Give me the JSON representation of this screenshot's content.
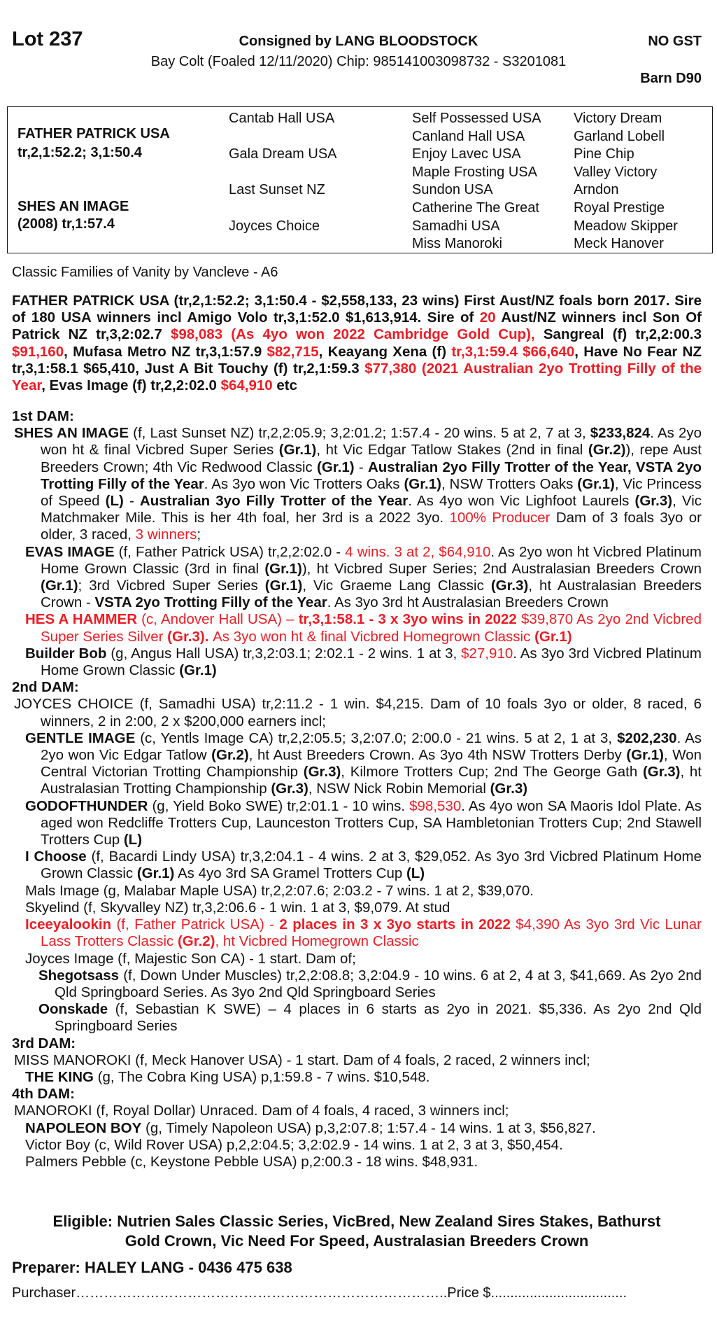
{
  "header": {
    "lot": "Lot 237",
    "consigned": "Consigned by LANG BLOODSTOCK",
    "gst": "NO GST",
    "horse": "Bay Colt (Foaled 12/11/2020) Chip: 985141003098732 - S3201081",
    "barn": "Barn D90"
  },
  "pedigree": {
    "sire_name": "FATHER PATRICK USA",
    "sire_record": "tr,2,1:52.2; 3,1:50.4",
    "dam_name": "SHES AN IMAGE",
    "dam_record": "(2008) tr,1:57.4",
    "gen2": [
      "Cantab Hall USA",
      "Gala Dream USA",
      "Last Sunset NZ",
      "Joyces Choice"
    ],
    "gen3": [
      "Self Possessed USA",
      "Canland Hall USA",
      "Enjoy Lavec USA",
      "Maple Frosting USA",
      "Sundon USA",
      "Catherine The Great",
      "Samadhi USA",
      "Miss Manoroki"
    ],
    "gen4": [
      "Victory Dream",
      "Garland Lobell",
      "Pine Chip",
      "Valley Victory",
      "Arndon",
      "Royal Prestige",
      "Meadow Skipper",
      "Meck Hanover"
    ]
  },
  "family": "Classic Families of Vanity by Vancleve - A6",
  "sire_summary": {
    "segments": [
      {
        "t": "FATHER PATRICK USA (tr,2,1:52.2; 3,1:50.4 - $2,558,133, 23 wins) First Aust/NZ foals born 2017. Sire of 180 USA winners incl Amigo Volo tr,3,1:52.0 $1,613,914. Sire of ",
        "s": ""
      },
      {
        "t": "20",
        "s": "r"
      },
      {
        "t": " Aust/NZ winners incl Son Of Patrick NZ tr,3,2:02.7 ",
        "s": ""
      },
      {
        "t": "$98,083 (As 4yo won 2022 Cambridge Gold Cup),",
        "s": "r"
      },
      {
        "t": " Sangreal (f) tr,2,2:00.3 ",
        "s": ""
      },
      {
        "t": "$91,160",
        "s": "r"
      },
      {
        "t": ", Mufasa Metro NZ tr,3,1:57.9 ",
        "s": ""
      },
      {
        "t": "$82,715",
        "s": "r"
      },
      {
        "t": ", Keayang Xena (f) ",
        "s": ""
      },
      {
        "t": "tr,3,1:59.4  $66,640",
        "s": "r"
      },
      {
        "t": ", Have No Fear NZ tr,3,1:58.1 $65,410, Just A Bit Touchy (f) tr,2,1:59.3 ",
        "s": ""
      },
      {
        "t": "$77,380 (2021 Australian 2yo Trotting Filly of the Year",
        "s": "r"
      },
      {
        "t": ", Evas Image (f) tr,2,2:02.0 ",
        "s": ""
      },
      {
        "t": "$64,910",
        "s": "r"
      },
      {
        "t": " etc",
        "s": ""
      }
    ]
  },
  "dams": {
    "entries": [
      {
        "level": "h",
        "segments": [
          {
            "t": "1st DAM:",
            "s": "b"
          }
        ]
      },
      {
        "level": "d",
        "segments": [
          {
            "t": "SHES AN IMAGE",
            "s": "b"
          },
          {
            "t": " (f, Last Sunset NZ) tr,2,2:05.9; 3,2:01.2; 1:57.4 - 20 wins. 5 at 2, 7 at 3, ",
            "s": ""
          },
          {
            "t": "$233,824",
            "s": "b"
          },
          {
            "t": ". As 2yo won ht & final Vicbred Super Series ",
            "s": ""
          },
          {
            "t": "(Gr.1)",
            "s": "b"
          },
          {
            "t": ", ht Vic Edgar Tatlow Stakes (2nd in final ",
            "s": ""
          },
          {
            "t": "(Gr.2)",
            "s": "b"
          },
          {
            "t": "), repe Aust Breeders Crown; 4th Vic Redwood Classic ",
            "s": ""
          },
          {
            "t": "(Gr.1)",
            "s": "b"
          },
          {
            "t": " - ",
            "s": ""
          },
          {
            "t": "Australian 2yo Filly Trotter of the Year, VSTA 2yo Trotting Filly of the Year",
            "s": "b"
          },
          {
            "t": ". As 3yo won Vic Trotters Oaks ",
            "s": ""
          },
          {
            "t": "(Gr.1)",
            "s": "b"
          },
          {
            "t": ", NSW Trotters Oaks ",
            "s": ""
          },
          {
            "t": "(Gr.1)",
            "s": "b"
          },
          {
            "t": ", Vic Princess of Speed ",
            "s": ""
          },
          {
            "t": "(L)",
            "s": "b"
          },
          {
            "t": " - ",
            "s": ""
          },
          {
            "t": "Australian 3yo Filly Trotter of the Year",
            "s": "b"
          },
          {
            "t": ". As 4yo won Vic Lighfoot Laurels ",
            "s": ""
          },
          {
            "t": "(Gr.3)",
            "s": "b"
          },
          {
            "t": ", Vic Matchmaker Mile. This is her 4th foal, her 3rd is a 2022 3yo. ",
            "s": ""
          },
          {
            "t": "100% Producer",
            "s": "r"
          },
          {
            "t": " Dam of 3 foals 3yo or older, 3 raced, ",
            "s": ""
          },
          {
            "t": "3 winners",
            "s": "r"
          },
          {
            "t": ";",
            "s": ""
          }
        ]
      },
      {
        "level": "f",
        "segments": [
          {
            "t": "EVAS IMAGE",
            "s": "b"
          },
          {
            "t": " (f, Father Patrick USA) tr,2,2:02.0 - ",
            "s": ""
          },
          {
            "t": "4 wins. 3 at 2, $64,910",
            "s": "r"
          },
          {
            "t": ". As 2yo won ht Vicbred Platinum Home Grown Classic (3rd in final ",
            "s": ""
          },
          {
            "t": "(Gr.1)",
            "s": "b"
          },
          {
            "t": "), ht Vicbred Super Series; 2nd Australasian Breeders Crown ",
            "s": ""
          },
          {
            "t": "(Gr.1)",
            "s": "b"
          },
          {
            "t": "; 3rd Vicbred Super Series ",
            "s": ""
          },
          {
            "t": "(Gr.1)",
            "s": "b"
          },
          {
            "t": ", Vic Graeme Lang Classic ",
            "s": ""
          },
          {
            "t": "(Gr.3)",
            "s": "b"
          },
          {
            "t": ", ht Australasian Breeders Crown - ",
            "s": ""
          },
          {
            "t": "VSTA 2yo Trotting Filly of the Year",
            "s": "b"
          },
          {
            "t": ". As 3yo 3rd ht Australasian Breeders Crown",
            "s": ""
          }
        ]
      },
      {
        "level": "f",
        "segments": [
          {
            "t": "HES A HAMMER",
            "s": "br"
          },
          {
            "t": " (c, Andover Hall USA) – ",
            "s": "r"
          },
          {
            "t": "tr,3,1:58.1 - 3 x 3yo wins in 2022",
            "s": "br"
          },
          {
            "t": " $39,870 As 2yo 2nd Vicbred Super Series Silver ",
            "s": "r"
          },
          {
            "t": "(Gr.3). ",
            "s": "br"
          },
          {
            "t": "As 3yo won ht & final Vicbred Homegrown Classic ",
            "s": "r"
          },
          {
            "t": "(Gr.1)",
            "s": "br"
          }
        ]
      },
      {
        "level": "f",
        "segments": [
          {
            "t": "Builder Bob",
            "s": "b"
          },
          {
            "t": " (g, Angus Hall USA) tr,3,2:03.1; 2:02.1 - 2 wins. 1 at 3, ",
            "s": ""
          },
          {
            "t": "$27,910",
            "s": "r"
          },
          {
            "t": ". As 3yo 3rd Vicbred Platinum Home Grown Classic ",
            "s": ""
          },
          {
            "t": "(Gr.1)",
            "s": "b"
          }
        ]
      },
      {
        "level": "h",
        "segments": [
          {
            "t": "2nd DAM:",
            "s": "b"
          }
        ]
      },
      {
        "level": "d",
        "segments": [
          {
            "t": "JOYCES CHOICE (f, Samadhi USA) tr,2:11.2 - 1 win. $4,215. Dam of 10 foals 3yo or older, 8 raced, 6 winners, 2 in 2:00, 2 x $200,000 earners incl;",
            "s": ""
          }
        ]
      },
      {
        "level": "f",
        "segments": [
          {
            "t": "GENTLE IMAGE",
            "s": "b"
          },
          {
            "t": " (c, Yentls Image CA) tr,2,2:05.5; 3,2:07.0; 2:00.0 - 21 wins. 5 at 2, 1 at 3, ",
            "s": ""
          },
          {
            "t": "$202,230",
            "s": "b"
          },
          {
            "t": ". As 2yo won Vic Edgar Tatlow ",
            "s": ""
          },
          {
            "t": "(Gr.2)",
            "s": "b"
          },
          {
            "t": ", ht Aust Breeders Crown. As 3yo 4th NSW Trotters Derby ",
            "s": ""
          },
          {
            "t": "(Gr.1)",
            "s": "b"
          },
          {
            "t": ", Won Central Victorian Trotting Championship ",
            "s": ""
          },
          {
            "t": "(Gr.3)",
            "s": "b"
          },
          {
            "t": ", Kilmore Trotters Cup; 2nd The George Gath ",
            "s": ""
          },
          {
            "t": "(Gr.3)",
            "s": "b"
          },
          {
            "t": ", ht Australasian Trotting Championship ",
            "s": ""
          },
          {
            "t": "(Gr.3)",
            "s": "b"
          },
          {
            "t": ", NSW Nick Robin Memorial ",
            "s": ""
          },
          {
            "t": "(Gr.3)",
            "s": "b"
          }
        ]
      },
      {
        "level": "f",
        "segments": [
          {
            "t": "GODOFTHUNDER",
            "s": "b"
          },
          {
            "t": " (g, Yield Boko SWE) tr,2:01.1 - 10 wins. ",
            "s": ""
          },
          {
            "t": "$98,530",
            "s": "r"
          },
          {
            "t": ". As 4yo won SA Maoris Idol Plate. As aged won Redcliffe Trotters Cup, Launceston Trotters Cup, SA Hambletonian Trotters Cup; 2nd Stawell Trotters Cup ",
            "s": ""
          },
          {
            "t": "(L)",
            "s": "b"
          }
        ]
      },
      {
        "level": "f",
        "segments": [
          {
            "t": "I Choose",
            "s": "b"
          },
          {
            "t": " (f, Bacardi Lindy USA) tr,3,2:04.1 - 4 wins. 2 at 3, $29,052. As 3yo 3rd Vicbred Platinum Home Grown Classic ",
            "s": ""
          },
          {
            "t": "(Gr.1)",
            "s": "b"
          },
          {
            "t": " As 4yo 3rd SA Gramel Trotters Cup ",
            "s": ""
          },
          {
            "t": "(L)",
            "s": "b"
          }
        ]
      },
      {
        "level": "f",
        "segments": [
          {
            "t": "Mals Image (g, Malabar Maple USA) tr,2,2:07.6; 2:03.2 - 7 wins. 1 at 2, $39,070.",
            "s": ""
          }
        ]
      },
      {
        "level": "f",
        "segments": [
          {
            "t": "Skyelind (f, Skyvalley NZ) tr,3,2:06.6 - 1 win. 1 at 3, $9,079. At stud",
            "s": ""
          }
        ]
      },
      {
        "level": "f",
        "segments": [
          {
            "t": "Iceeyalookin",
            "s": "br"
          },
          {
            "t": " (f, Father Patrick USA) - ",
            "s": "r"
          },
          {
            "t": "2 places in 3 x 3yo starts in 2022",
            "s": "br"
          },
          {
            "t": " $4,390 As 3yo 3rd Vic Lunar Lass Trotters Classic ",
            "s": "r"
          },
          {
            "t": "(Gr.2)",
            "s": "br"
          },
          {
            "t": ", ht Vicbred Homegrown Classic",
            "s": "r"
          }
        ]
      },
      {
        "level": "f",
        "segments": [
          {
            "t": "Joyces Image (f, Majestic Son CA) - 1 start. Dam of;",
            "s": ""
          }
        ]
      },
      {
        "level": "g",
        "segments": [
          {
            "t": "Shegotsass",
            "s": "b"
          },
          {
            "t": " (f, Down Under Muscles) tr,2,2:08.8; 3,2:04.9 - 10 wins. 6 at 2, 4 at 3, $41,669. As 2yo 2nd Qld Springboard Series. As 3yo 2nd Qld Springboard Series",
            "s": ""
          }
        ]
      },
      {
        "level": "g",
        "segments": [
          {
            "t": "Oonskade",
            "s": "b"
          },
          {
            "t": " (f, Sebastian K SWE) – 4 places in 6 starts as 2yo in 2021. $5,336. As 2yo 2nd Qld Springboard Series",
            "s": ""
          }
        ]
      },
      {
        "level": "h",
        "segments": [
          {
            "t": "3rd DAM:",
            "s": "b"
          }
        ]
      },
      {
        "level": "d",
        "segments": [
          {
            "t": "MISS MANOROKI (f, Meck Hanover USA) - 1 start. Dam of 4 foals, 2 raced, 2 winners incl;",
            "s": ""
          }
        ]
      },
      {
        "level": "f",
        "segments": [
          {
            "t": "THE KING",
            "s": "b"
          },
          {
            "t": " (g, The Cobra King USA) p,1:59.8 - 7 wins. $10,548.",
            "s": ""
          }
        ]
      },
      {
        "level": "h",
        "segments": [
          {
            "t": "4th DAM:",
            "s": "b"
          }
        ]
      },
      {
        "level": "d",
        "segments": [
          {
            "t": "MANOROKI (f, Royal Dollar) Unraced. Dam of 4 foals, 4 raced, 3 winners incl;",
            "s": ""
          }
        ]
      },
      {
        "level": "f",
        "segments": [
          {
            "t": "NAPOLEON BOY",
            "s": "b"
          },
          {
            "t": " (g, Timely Napoleon USA) p,3,2:07.8; 1:57.4 - 14 wins. 1 at 3, $56,827.",
            "s": ""
          }
        ]
      },
      {
        "level": "f",
        "segments": [
          {
            "t": "Victor Boy (c, Wild Rover USA) p,2,2:04.5; 3,2:02.9 - 14 wins. 1 at 2, 3 at 3, $50,454.",
            "s": ""
          }
        ]
      },
      {
        "level": "f",
        "segments": [
          {
            "t": "Palmers Pebble (c, Keystone Pebble USA) p,2:00.3 - 18 wins. $48,931.",
            "s": ""
          }
        ]
      }
    ]
  },
  "footer": {
    "eligible_line1": "Eligible: Nutrien Sales Classic Series, VicBred, New Zealand Sires Stakes, Bathurst",
    "eligible_line2": "Gold Crown, Vic Need For Speed, Australasian Breeders Crown",
    "preparer": "Preparer: HALEY LANG - 0436 475 638",
    "purchaser": "Purchaser……………………………………………………………………..Price $..................................."
  },
  "colors": {
    "highlight": "#ee1c24",
    "text": "#111111"
  }
}
